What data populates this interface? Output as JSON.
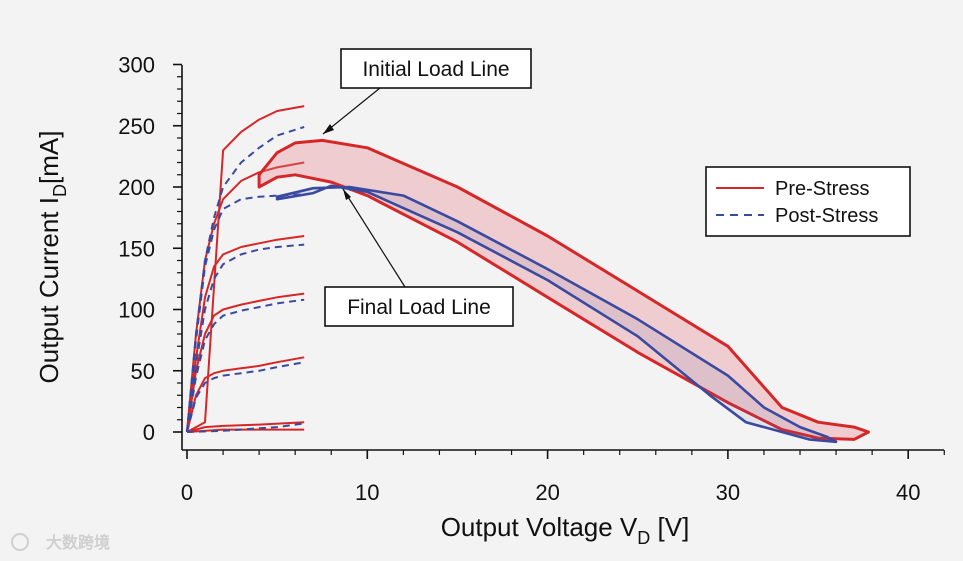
{
  "chart_data": {
    "type": "line",
    "x_axis": {
      "label_main": "Output Voltage V",
      "label_sub": "D",
      "label_unit": " [V]",
      "range": [
        0,
        42
      ],
      "ticks": [
        0,
        10,
        20,
        30,
        40
      ]
    },
    "y_axis": {
      "label_main": "Output Current I",
      "label_sub": "D",
      "label_unit": "[mA]",
      "range": [
        -10,
        300
      ],
      "ticks": [
        0,
        50,
        100,
        150,
        200,
        250,
        300
      ]
    },
    "legend": {
      "placement": "right",
      "entries": [
        {
          "label": "Pre-Stress",
          "color": "#d62728",
          "dash": "solid"
        },
        {
          "label": "Post-Stress",
          "color": "#3a4aa0",
          "dash": "dashed"
        }
      ]
    },
    "annotations": [
      {
        "text": "Initial Load Line",
        "points_to": [
          7.7,
          238
        ]
      },
      {
        "text": "Final Load Line",
        "points_to": [
          8.8,
          198
        ]
      }
    ],
    "series": [
      {
        "name": "Pre-Stress",
        "kind": "iv_curves",
        "color": "#d62728",
        "curves": [
          {
            "points": [
              [
                0,
                0
              ],
              [
                1,
                8
              ],
              [
                2,
                230
              ],
              [
                3,
                245
              ],
              [
                4,
                255
              ],
              [
                5,
                262
              ],
              [
                6.5,
                266
              ]
            ]
          },
          {
            "points": [
              [
                0,
                0
              ],
              [
                0.5,
                80
              ],
              [
                1,
                140
              ],
              [
                1.5,
                170
              ],
              [
                2,
                190
              ],
              [
                3,
                205
              ],
              [
                4,
                212
              ],
              [
                5,
                216
              ],
              [
                6.5,
                220
              ]
            ]
          },
          {
            "points": [
              [
                0,
                0
              ],
              [
                0.5,
                60
              ],
              [
                1,
                110
              ],
              [
                1.5,
                135
              ],
              [
                2,
                145
              ],
              [
                3,
                151
              ],
              [
                4,
                154
              ],
              [
                5,
                157
              ],
              [
                6.5,
                160
              ]
            ]
          },
          {
            "points": [
              [
                0,
                0
              ],
              [
                0.5,
                50
              ],
              [
                1,
                80
              ],
              [
                1.5,
                95
              ],
              [
                2,
                100
              ],
              [
                3,
                104
              ],
              [
                4,
                107
              ],
              [
                5,
                110
              ],
              [
                6.5,
                113
              ]
            ]
          },
          {
            "points": [
              [
                0,
                0
              ],
              [
                0.5,
                30
              ],
              [
                1,
                44
              ],
              [
                1.5,
                48
              ],
              [
                2,
                50
              ],
              [
                3,
                52
              ],
              [
                4,
                54
              ],
              [
                5,
                57
              ],
              [
                6.5,
                61
              ]
            ]
          },
          {
            "points": [
              [
                0,
                0
              ],
              [
                1,
                4
              ],
              [
                2,
                5
              ],
              [
                4,
                6
              ],
              [
                6.5,
                8
              ]
            ]
          },
          {
            "points": [
              [
                0,
                0
              ],
              [
                2,
                2
              ],
              [
                4,
                2
              ],
              [
                6.5,
                2
              ]
            ]
          }
        ]
      },
      {
        "name": "Post-Stress",
        "kind": "iv_curves",
        "color": "#3a4aa0",
        "curves": [
          {
            "points": [
              [
                0,
                0
              ],
              [
                0.5,
                80
              ],
              [
                1,
                140
              ],
              [
                1.5,
                175
              ],
              [
                2,
                200
              ],
              [
                3,
                220
              ],
              [
                4,
                232
              ],
              [
                5,
                242
              ],
              [
                6.5,
                249
              ]
            ]
          },
          {
            "points": [
              [
                0,
                0
              ],
              [
                0.5,
                75
              ],
              [
                1,
                135
              ],
              [
                1.5,
                165
              ],
              [
                2,
                182
              ],
              [
                3,
                190
              ],
              [
                4,
                192
              ],
              [
                5,
                193
              ],
              [
                6.5,
                194
              ]
            ]
          },
          {
            "points": [
              [
                0,
                0
              ],
              [
                0.5,
                55
              ],
              [
                1,
                100
              ],
              [
                1.5,
                125
              ],
              [
                2,
                137
              ],
              [
                3,
                145
              ],
              [
                4,
                149
              ],
              [
                5,
                151
              ],
              [
                6.5,
                153
              ]
            ]
          },
          {
            "points": [
              [
                0,
                0
              ],
              [
                0.5,
                45
              ],
              [
                1,
                75
              ],
              [
                1.5,
                88
              ],
              [
                2,
                95
              ],
              [
                3,
                99
              ],
              [
                4,
                102
              ],
              [
                5,
                105
              ],
              [
                6.5,
                108
              ]
            ]
          },
          {
            "points": [
              [
                0,
                0
              ],
              [
                0.5,
                28
              ],
              [
                1,
                40
              ],
              [
                1.5,
                44
              ],
              [
                2,
                46
              ],
              [
                3,
                48
              ],
              [
                4,
                50
              ],
              [
                5,
                53
              ],
              [
                6.5,
                57
              ]
            ]
          },
          {
            "points": [
              [
                0,
                0
              ],
              [
                2,
                1
              ],
              [
                4,
                3
              ],
              [
                5,
                4
              ],
              [
                6.5,
                7
              ]
            ]
          }
        ]
      },
      {
        "name": "Load line (pre-stress, initial)",
        "kind": "loop",
        "color": "#d62728",
        "points": [
          [
            4,
            210
          ],
          [
            5,
            228
          ],
          [
            6,
            236
          ],
          [
            7.5,
            238
          ],
          [
            10,
            232
          ],
          [
            15,
            200
          ],
          [
            20,
            160
          ],
          [
            25,
            115
          ],
          [
            30,
            70
          ],
          [
            33,
            20
          ],
          [
            35,
            8
          ],
          [
            37,
            4
          ],
          [
            37.8,
            0
          ],
          [
            37,
            -6
          ],
          [
            35,
            -5
          ],
          [
            33,
            2
          ],
          [
            30,
            24
          ],
          [
            25,
            65
          ],
          [
            20,
            110
          ],
          [
            15,
            155
          ],
          [
            10,
            193
          ],
          [
            8,
            204
          ],
          [
            6,
            210
          ],
          [
            5,
            208
          ],
          [
            4,
            200
          ],
          [
            4,
            210
          ]
        ]
      },
      {
        "name": "Load line (post-stress, final)",
        "kind": "loop",
        "color": "#3a4aa0",
        "points": [
          [
            5,
            192
          ],
          [
            7,
            199
          ],
          [
            9,
            200
          ],
          [
            12,
            193
          ],
          [
            15,
            172
          ],
          [
            20,
            133
          ],
          [
            25,
            92
          ],
          [
            30,
            46
          ],
          [
            32,
            20
          ],
          [
            34,
            4
          ],
          [
            35.5,
            -4
          ],
          [
            36,
            -8
          ],
          [
            34.5,
            -6
          ],
          [
            33,
            0
          ],
          [
            31,
            8
          ],
          [
            29,
            30
          ],
          [
            25,
            78
          ],
          [
            20,
            124
          ],
          [
            15,
            163
          ],
          [
            10,
            196
          ],
          [
            8,
            201
          ],
          [
            7,
            195
          ],
          [
            5,
            190
          ],
          [
            5,
            192
          ]
        ]
      }
    ]
  },
  "watermark": {
    "text": "大数跨境"
  }
}
